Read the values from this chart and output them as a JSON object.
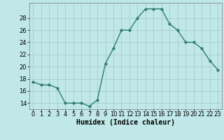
{
  "x": [
    0,
    1,
    2,
    3,
    4,
    5,
    6,
    7,
    8,
    9,
    10,
    11,
    12,
    13,
    14,
    15,
    16,
    17,
    18,
    19,
    20,
    21,
    22,
    23
  ],
  "y": [
    17.5,
    17.0,
    17.0,
    16.5,
    14.0,
    14.0,
    14.0,
    13.5,
    14.5,
    20.5,
    23.0,
    26.0,
    26.0,
    28.0,
    29.5,
    29.5,
    29.5,
    27.0,
    26.0,
    24.0,
    24.0,
    23.0,
    21.0,
    19.5
  ],
  "line_color": "#2e7d6e",
  "marker": "o",
  "marker_size": 2.0,
  "line_width": 1.0,
  "bg_color": "#c0e8e8",
  "grid_color": "#a0c8c8",
  "xlabel": "Humidex (Indice chaleur)",
  "xlabel_fontsize": 7,
  "tick_fontsize": 6,
  "ylim": [
    13.0,
    30.5
  ],
  "yticks": [
    14,
    16,
    18,
    20,
    22,
    24,
    26,
    28
  ],
  "xlim": [
    -0.5,
    23.5
  ]
}
